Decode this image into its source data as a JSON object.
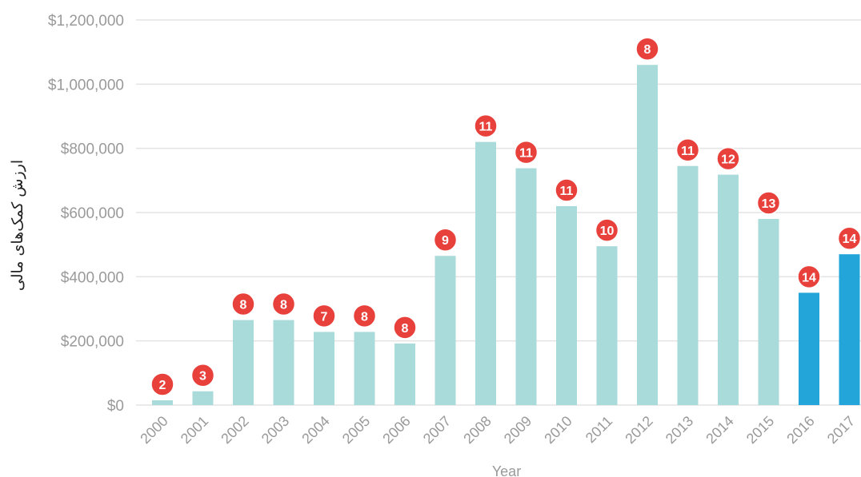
{
  "chart_data": {
    "type": "bar",
    "xlabel": "Year",
    "ylabel": "ارزش کمک‌های مالی",
    "ylim": [
      0,
      1200000
    ],
    "yticks": [
      "$0",
      "$200,000",
      "$400,000",
      "$600,000",
      "$800,000",
      "$1,000,000",
      "$1,200,000"
    ],
    "grid": "horizontal",
    "categories": [
      "2000",
      "2001",
      "2002",
      "2003",
      "2004",
      "2005",
      "2006",
      "2007",
      "2008",
      "2009",
      "2010",
      "2011",
      "2012",
      "2013",
      "2014",
      "2015",
      "2016",
      "2017"
    ],
    "values": [
      15000,
      43000,
      265000,
      265000,
      228000,
      228000,
      192000,
      465000,
      820000,
      738000,
      620000,
      495000,
      1060000,
      745000,
      718000,
      580000,
      350000,
      470000
    ],
    "counts": [
      "2",
      "3",
      "8",
      "8",
      "7",
      "8",
      "8",
      "9",
      "11",
      "11",
      "11",
      "10",
      "8",
      "11",
      "12",
      "13",
      "14",
      "14"
    ],
    "colors": {
      "default_bar": "#a8dbd9",
      "highlight_bar": "#23a5da",
      "highlight_categories": [
        "2016",
        "2017"
      ],
      "badge": "#e8413c",
      "grid": "#e3e3e3"
    }
  }
}
